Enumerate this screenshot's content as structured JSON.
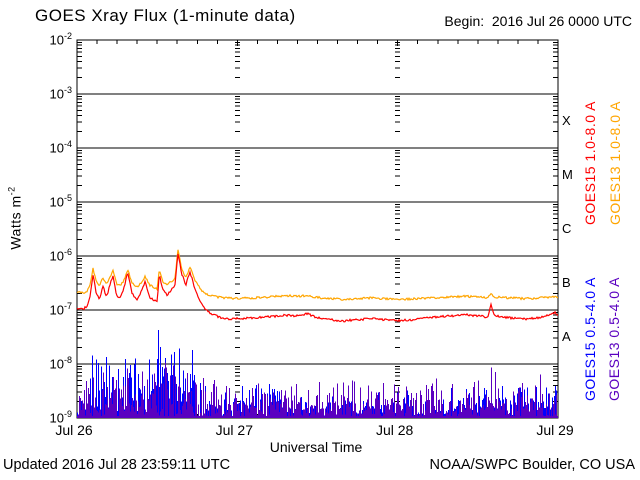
{
  "header": {
    "title": "GOES Xray Flux (1-minute data)",
    "begin": "Begin:  2016 Jul 26 0000 UTC"
  },
  "y_axis": {
    "base": "10",
    "tick_exponents": [
      -2,
      -3,
      -4,
      -5,
      -6,
      -7,
      -8,
      -9
    ],
    "title": "Watts m",
    "title_exponent": "-2"
  },
  "x_axis": {
    "title": "Universal Time",
    "tick_labels": [
      "Jul 26",
      "Jul 27",
      "Jul 28",
      "Jul 29"
    ]
  },
  "flare_classes": [
    "X",
    "M",
    "C",
    "B",
    "A"
  ],
  "legend": [
    {
      "label": "GOES15 1.0-8.0 A",
      "color": "#FF0000"
    },
    {
      "label": "GOES13 1.0-8.0 A",
      "color": "#FFA500"
    },
    {
      "label": "GOES15 0.5-4.0 A",
      "color": "#0000FF"
    },
    {
      "label": "GOES13 0.5-4.0 A",
      "color": "#5A00C0"
    }
  ],
  "footer": {
    "updated": "Updated 2016 Jul 28 23:59:11 UTC",
    "source": "NOAA/SWPC Boulder, CO USA"
  },
  "colors": {
    "axis": "#000000",
    "background": "#FFFFFF",
    "goes15_long": "#FF0000",
    "goes13_long": "#FFA500",
    "goes15_short": "#0000FF",
    "goes13_short": "#5A00C0"
  },
  "chart_data": {
    "type": "line",
    "title": "GOES Xray Flux (1-minute data)",
    "xlabel": "Universal Time",
    "ylabel": "Watts m^-2",
    "x_unit": "hours since 2016 Jul 26 0000 UTC",
    "x_range": [
      0,
      72
    ],
    "x_tick_hours": [
      0,
      24,
      48,
      72
    ],
    "y_scale": "log",
    "y_range": [
      1e-09,
      0.01
    ],
    "grid": "horizontal solid per decade, dotted vertical at day boundaries",
    "legend_position": "right, rotated",
    "flare_class_bands": {
      "A": [
        1e-08,
        1e-07
      ],
      "B": [
        1e-07,
        1e-06
      ],
      "C": [
        1e-06,
        1e-05
      ],
      "M": [
        1e-05,
        0.0001
      ],
      "X": [
        0.0001,
        0.001
      ]
    },
    "series": [
      {
        "name": "GOES15 1.0-8.0 A",
        "color": "#FF0000",
        "style": "line",
        "points": [
          [
            0,
            1.05e-07
          ],
          [
            1,
            1.05e-07
          ],
          [
            1.6,
            1.2e-07
          ],
          [
            2.0,
            1.9e-07
          ],
          [
            2.4,
            4.6e-07
          ],
          [
            2.9,
            2e-07
          ],
          [
            3.4,
            1.6e-07
          ],
          [
            3.9,
            2.9e-07
          ],
          [
            4.4,
            1.7e-07
          ],
          [
            5.0,
            3.1e-07
          ],
          [
            5.4,
            4.4e-07
          ],
          [
            5.9,
            1.9e-07
          ],
          [
            6.4,
            1.6e-07
          ],
          [
            7.0,
            2.5e-07
          ],
          [
            7.6,
            5e-07
          ],
          [
            8.2,
            2.1e-07
          ],
          [
            8.9,
            1.5e-07
          ],
          [
            9.6,
            2.2e-07
          ],
          [
            10.2,
            3.3e-07
          ],
          [
            10.9,
            1.7e-07
          ],
          [
            11.6,
            1.5e-07
          ],
          [
            12.0,
            1.4e-07
          ],
          [
            12.3,
            4.6e-07
          ],
          [
            12.9,
            2.3e-07
          ],
          [
            13.5,
            1.9e-07
          ],
          [
            14.2,
            2.4e-07
          ],
          [
            14.7,
            3e-07
          ],
          [
            15.1,
            1.15e-06
          ],
          [
            15.7,
            4.6e-07
          ],
          [
            16.3,
            2.9e-07
          ],
          [
            16.9,
            5.2e-07
          ],
          [
            17.6,
            2.6e-07
          ],
          [
            18.4,
            1.5e-07
          ],
          [
            19.3,
            1e-07
          ],
          [
            20.4,
            8.2e-08
          ],
          [
            21.6,
            7.2e-08
          ],
          [
            23,
            6.8e-08
          ],
          [
            25,
            7e-08
          ],
          [
            27,
            7.2e-08
          ],
          [
            29,
            7.5e-08
          ],
          [
            31,
            8e-08
          ],
          [
            33,
            7.8e-08
          ],
          [
            34.5,
            8.5e-08
          ],
          [
            36,
            7.2e-08
          ],
          [
            38,
            6.6e-08
          ],
          [
            40,
            6.3e-08
          ],
          [
            42,
            6.6e-08
          ],
          [
            44,
            6.9e-08
          ],
          [
            46,
            6.6e-08
          ],
          [
            48,
            6.4e-08
          ],
          [
            50,
            6.6e-08
          ],
          [
            52,
            7e-08
          ],
          [
            54,
            7.4e-08
          ],
          [
            56,
            7.8e-08
          ],
          [
            58,
            8.2e-08
          ],
          [
            60,
            7.8e-08
          ],
          [
            61.5,
            7.4e-08
          ],
          [
            62,
            1.3e-07
          ],
          [
            62.4,
            8e-08
          ],
          [
            63.5,
            7.4e-08
          ],
          [
            65,
            7.1e-08
          ],
          [
            67,
            6.8e-08
          ],
          [
            69,
            7.2e-08
          ],
          [
            70.5,
            8e-08
          ],
          [
            71.5,
            9e-08
          ],
          [
            72,
            8.2e-08
          ]
        ]
      },
      {
        "name": "GOES13 1.0-8.0 A",
        "color": "#FFA500",
        "style": "line",
        "points": [
          [
            0,
            2.1e-07
          ],
          [
            1,
            2.1e-07
          ],
          [
            1.6,
            2.3e-07
          ],
          [
            2.0,
            3e-07
          ],
          [
            2.4,
            6e-07
          ],
          [
            2.9,
            3.2e-07
          ],
          [
            3.4,
            2.8e-07
          ],
          [
            3.9,
            4e-07
          ],
          [
            4.4,
            2.9e-07
          ],
          [
            5.0,
            4.2e-07
          ],
          [
            5.4,
            5.4e-07
          ],
          [
            5.9,
            3.1e-07
          ],
          [
            6.4,
            2.8e-07
          ],
          [
            7.0,
            3.5e-07
          ],
          [
            7.6,
            5.8e-07
          ],
          [
            8.2,
            3.2e-07
          ],
          [
            8.9,
            2.6e-07
          ],
          [
            9.6,
            3.2e-07
          ],
          [
            10.2,
            4.2e-07
          ],
          [
            10.9,
            2.9e-07
          ],
          [
            11.6,
            2.6e-07
          ],
          [
            12.0,
            2.5e-07
          ],
          [
            12.3,
            5.5e-07
          ],
          [
            12.9,
            3.3e-07
          ],
          [
            13.5,
            3e-07
          ],
          [
            14.2,
            3.4e-07
          ],
          [
            14.7,
            4e-07
          ],
          [
            15.1,
            1.28e-06
          ],
          [
            15.7,
            5.8e-07
          ],
          [
            16.3,
            4e-07
          ],
          [
            16.9,
            6.2e-07
          ],
          [
            17.6,
            3.7e-07
          ],
          [
            18.4,
            2.5e-07
          ],
          [
            19.3,
            2e-07
          ],
          [
            20.4,
            1.8e-07
          ],
          [
            21.6,
            1.7e-07
          ],
          [
            23,
            1.65e-07
          ],
          [
            25,
            1.65e-07
          ],
          [
            27,
            1.7e-07
          ],
          [
            29,
            1.75e-07
          ],
          [
            31,
            1.85e-07
          ],
          [
            33,
            1.8e-07
          ],
          [
            34.5,
            1.85e-07
          ],
          [
            36,
            1.7e-07
          ],
          [
            38,
            1.62e-07
          ],
          [
            40,
            1.58e-07
          ],
          [
            42,
            1.62e-07
          ],
          [
            44,
            1.68e-07
          ],
          [
            46,
            1.62e-07
          ],
          [
            48,
            1.58e-07
          ],
          [
            50,
            1.6e-07
          ],
          [
            52,
            1.65e-07
          ],
          [
            54,
            1.7e-07
          ],
          [
            56,
            1.75e-07
          ],
          [
            58,
            1.8e-07
          ],
          [
            60,
            1.75e-07
          ],
          [
            61.5,
            1.7e-07
          ],
          [
            62,
            2.1e-07
          ],
          [
            62.4,
            1.75e-07
          ],
          [
            63.5,
            1.7e-07
          ],
          [
            65,
            1.68e-07
          ],
          [
            67,
            1.62e-07
          ],
          [
            69,
            1.66e-07
          ],
          [
            70.5,
            1.72e-07
          ],
          [
            71.5,
            1.78e-07
          ],
          [
            72,
            1.72e-07
          ]
        ]
      },
      {
        "name": "GOES15 0.5-4.0 A",
        "color": "#0000FF",
        "style": "noise",
        "floor": 1e-09,
        "envelope": [
          [
            0,
            3e-09
          ],
          [
            1,
            3e-09
          ],
          [
            1.8,
            1.5e-08
          ],
          [
            2.4,
            4e-08
          ],
          [
            3.5,
            2e-08
          ],
          [
            5,
            3e-08
          ],
          [
            6.5,
            1.5e-08
          ],
          [
            7.6,
            4e-08
          ],
          [
            9,
            1.5e-08
          ],
          [
            10.2,
            3e-08
          ],
          [
            11.5,
            2e-08
          ],
          [
            12,
            1.4e-07
          ],
          [
            12.4,
            3e-08
          ],
          [
            13.5,
            2.5e-08
          ],
          [
            15.1,
            1.7e-07
          ],
          [
            15.6,
            4e-08
          ],
          [
            16.9,
            1.1e-07
          ],
          [
            17.6,
            3e-08
          ],
          [
            18.5,
            1e-08
          ],
          [
            19.5,
            5e-09
          ],
          [
            21,
            3e-09
          ],
          [
            24,
            4e-09
          ],
          [
            26,
            8e-09
          ],
          [
            28,
            5e-09
          ],
          [
            32,
            4e-09
          ],
          [
            36,
            3e-09
          ],
          [
            40,
            4e-09
          ],
          [
            44,
            3e-09
          ],
          [
            48,
            4e-09
          ],
          [
            52,
            3e-09
          ],
          [
            56,
            4e-09
          ],
          [
            60,
            5e-09
          ],
          [
            64,
            4e-09
          ],
          [
            66,
            6e-09
          ],
          [
            69,
            6e-09
          ],
          [
            72,
            4e-09
          ]
        ]
      },
      {
        "name": "GOES13 0.5-4.0 A",
        "color": "#5A00C0",
        "style": "noise",
        "floor": 1e-09,
        "envelope": [
          [
            0,
            5e-09
          ],
          [
            2.4,
            1.2e-08
          ],
          [
            5,
            1e-08
          ],
          [
            7.6,
            1.4e-08
          ],
          [
            10,
            1e-08
          ],
          [
            12,
            1.6e-08
          ],
          [
            15.1,
            2.2e-08
          ],
          [
            17,
            1.4e-08
          ],
          [
            19,
            8e-09
          ],
          [
            21,
            6e-09
          ],
          [
            24,
            6e-09
          ],
          [
            27,
            7e-09
          ],
          [
            30,
            6e-09
          ],
          [
            33,
            6e-09
          ],
          [
            36,
            7e-09
          ],
          [
            39,
            6e-09
          ],
          [
            42,
            6e-09
          ],
          [
            45,
            7e-09
          ],
          [
            48,
            6e-09
          ],
          [
            51,
            6e-09
          ],
          [
            54,
            7e-09
          ],
          [
            57,
            6e-09
          ],
          [
            60,
            9e-09
          ],
          [
            62,
            1.2e-08
          ],
          [
            64,
            8e-09
          ],
          [
            66,
            9e-09
          ],
          [
            68,
            1e-08
          ],
          [
            70,
            8e-09
          ],
          [
            72,
            7e-09
          ]
        ]
      }
    ]
  }
}
